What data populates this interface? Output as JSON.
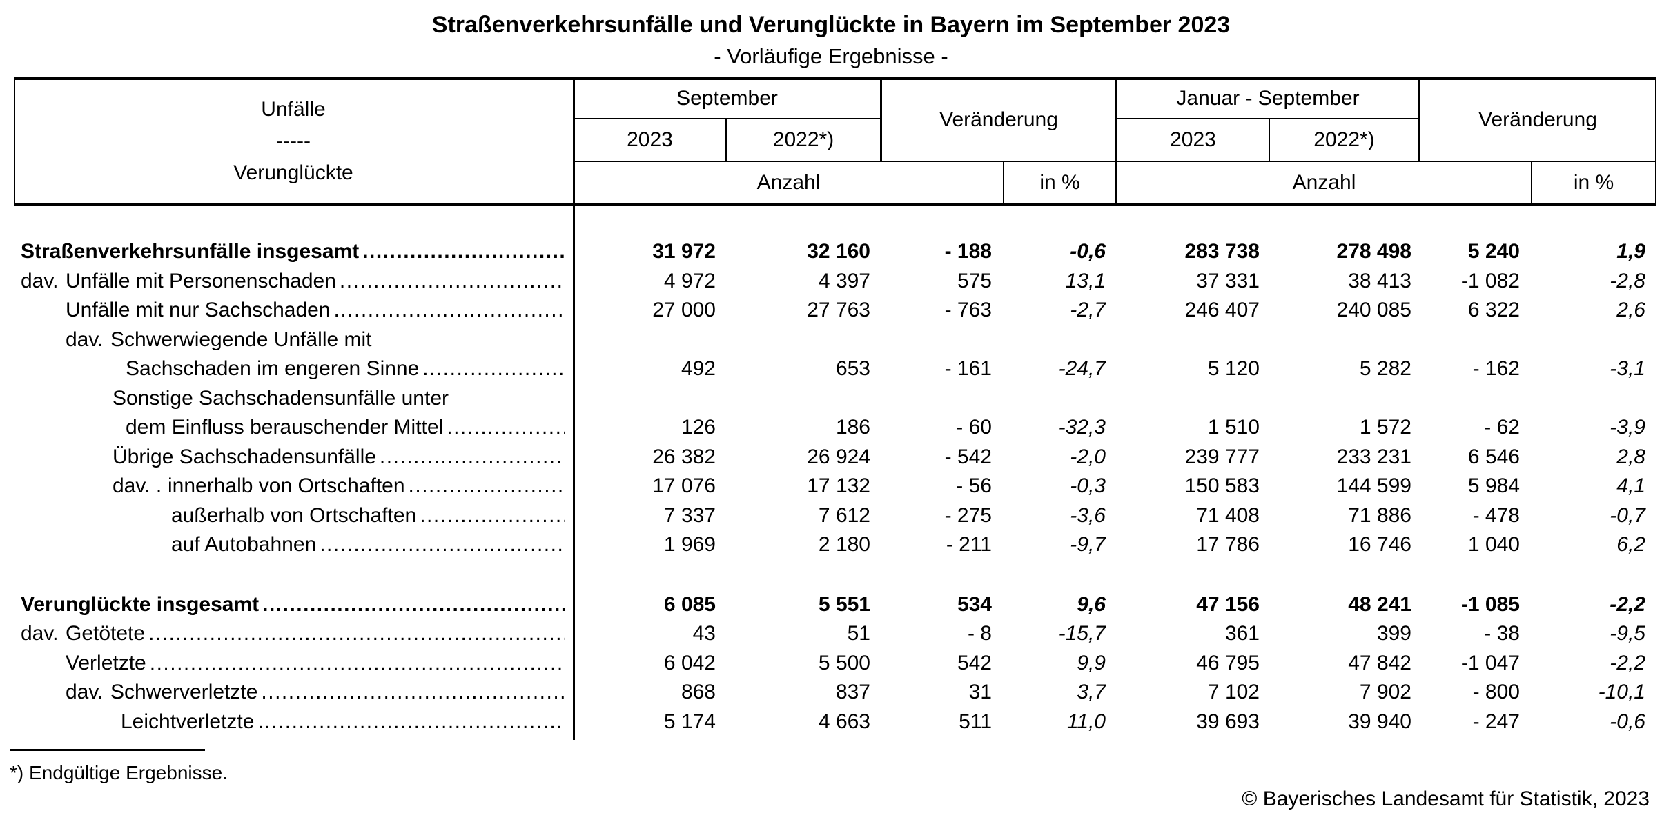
{
  "title": "Straßenverkehrsunfälle und Verunglückte in Bayern im September 2023",
  "subtitle": "- Vorläufige Ergebnisse -",
  "header": {
    "stub_top": "Unfälle",
    "stub_dashes": "-----",
    "stub_bottom": "Verunglückte",
    "group_september": "September",
    "group_jan_sep": "Januar - September",
    "change": "Veränderung",
    "year_current": "2023",
    "year_previous": "2022*)",
    "count_label": "Anzahl",
    "percent_label": "in %"
  },
  "table": {
    "leader_dots": "........................................................................................................................",
    "rows": [
      {
        "bold": true,
        "prefix": "",
        "indent": 10,
        "label": "Straßenverkehrsunfälle insgesamt",
        "leader": true,
        "values": [
          "31 972",
          "32 160",
          "- 188",
          "-0,6",
          "283 738",
          "278 498",
          "5 240",
          "1,9"
        ]
      },
      {
        "bold": false,
        "prefix": "dav.",
        "indent": 10,
        "label": "Unfälle mit Personenschaden",
        "leader": true,
        "values": [
          "4 972",
          "4 397",
          "575",
          "13,1",
          "37 331",
          "38 413",
          "-1 082",
          "-2,8"
        ]
      },
      {
        "bold": false,
        "prefix": "",
        "indent": 75,
        "label": "Unfälle mit nur Sachschaden",
        "leader": true,
        "values": [
          "27 000",
          "27 763",
          "- 763",
          "-2,7",
          "246 407",
          "240 085",
          "6 322",
          "2,6"
        ]
      },
      {
        "bold": false,
        "prefix": "dav.",
        "indent": 75,
        "label": "Schwerwiegende Unfälle mit",
        "leader": false,
        "values": null
      },
      {
        "bold": false,
        "prefix": "",
        "indent": 162,
        "label": "Sachschaden im engeren Sinne",
        "leader": true,
        "values": [
          "492",
          "653",
          "- 161",
          "-24,7",
          "5 120",
          "5 282",
          "- 162",
          "-3,1"
        ]
      },
      {
        "bold": false,
        "prefix": "",
        "indent": 143,
        "label": "Sonstige Sachschadensunfälle unter",
        "leader": false,
        "values": null
      },
      {
        "bold": false,
        "prefix": "",
        "indent": 162,
        "label": "dem Einfluss berauschender Mittel",
        "leader": true,
        "values": [
          "126",
          "186",
          "- 60",
          "-32,3",
          "1 510",
          "1 572",
          "- 62",
          "-3,9"
        ]
      },
      {
        "bold": false,
        "prefix": "",
        "indent": 143,
        "label": "Übrige Sachschadensunfälle",
        "leader": true,
        "values": [
          "26 382",
          "26 924",
          "- 542",
          "-2,0",
          "239 777",
          "233 231",
          "6 546",
          "2,8"
        ]
      },
      {
        "bold": false,
        "prefix": "dav. .",
        "indent": 143,
        "label": "innerhalb von Ortschaften",
        "leader": true,
        "values": [
          "17 076",
          "17 132",
          "- 56",
          "-0,3",
          "150 583",
          "144 599",
          "5 984",
          "4,1"
        ]
      },
      {
        "bold": false,
        "prefix": "",
        "indent": 228,
        "label": "außerhalb von Ortschaften",
        "leader": true,
        "values": [
          "7 337",
          "7 612",
          "- 275",
          "-3,6",
          "71 408",
          "71 886",
          "- 478",
          "-0,7"
        ]
      },
      {
        "bold": false,
        "prefix": "",
        "indent": 228,
        "label": "auf Autobahnen",
        "leader": true,
        "values": [
          "1 969",
          "2 180",
          "- 211",
          "-9,7",
          "17 786",
          "16 746",
          "1 040",
          "6,2"
        ]
      },
      {
        "spacer": true
      },
      {
        "bold": true,
        "prefix": "",
        "indent": 10,
        "label": "Verunglückte insgesamt",
        "leader": true,
        "values": [
          "6 085",
          "5 551",
          "534",
          "9,6",
          "47 156",
          "48 241",
          "-1 085",
          "-2,2"
        ]
      },
      {
        "bold": false,
        "prefix": "dav.",
        "indent": 10,
        "label": "Getötete",
        "leader": true,
        "values": [
          "43",
          "51",
          "- 8",
          "-15,7",
          "361",
          "399",
          "- 38",
          "-9,5"
        ]
      },
      {
        "bold": false,
        "prefix": "",
        "indent": 75,
        "label": "Verletzte",
        "leader": true,
        "values": [
          "6 042",
          "5 500",
          "542",
          "9,9",
          "46 795",
          "47 842",
          "-1 047",
          "-2,2"
        ]
      },
      {
        "bold": false,
        "prefix": "dav.",
        "indent": 75,
        "label": "Schwerverletzte",
        "leader": true,
        "values": [
          "868",
          "837",
          "31",
          "3,7",
          "7 102",
          "7 902",
          "- 800",
          "-10,1"
        ]
      },
      {
        "bold": false,
        "prefix": "",
        "indent": 155,
        "label": "Leichtverletzte",
        "leader": true,
        "values": [
          "5 174",
          "4 663",
          "511",
          "11,0",
          "39 693",
          "39 940",
          "- 247",
          "-0,6"
        ]
      }
    ]
  },
  "footnote": "*) Endgültige Ergebnisse.",
  "copyright": "© Bayerisches Landesamt für Statistik, 2023"
}
